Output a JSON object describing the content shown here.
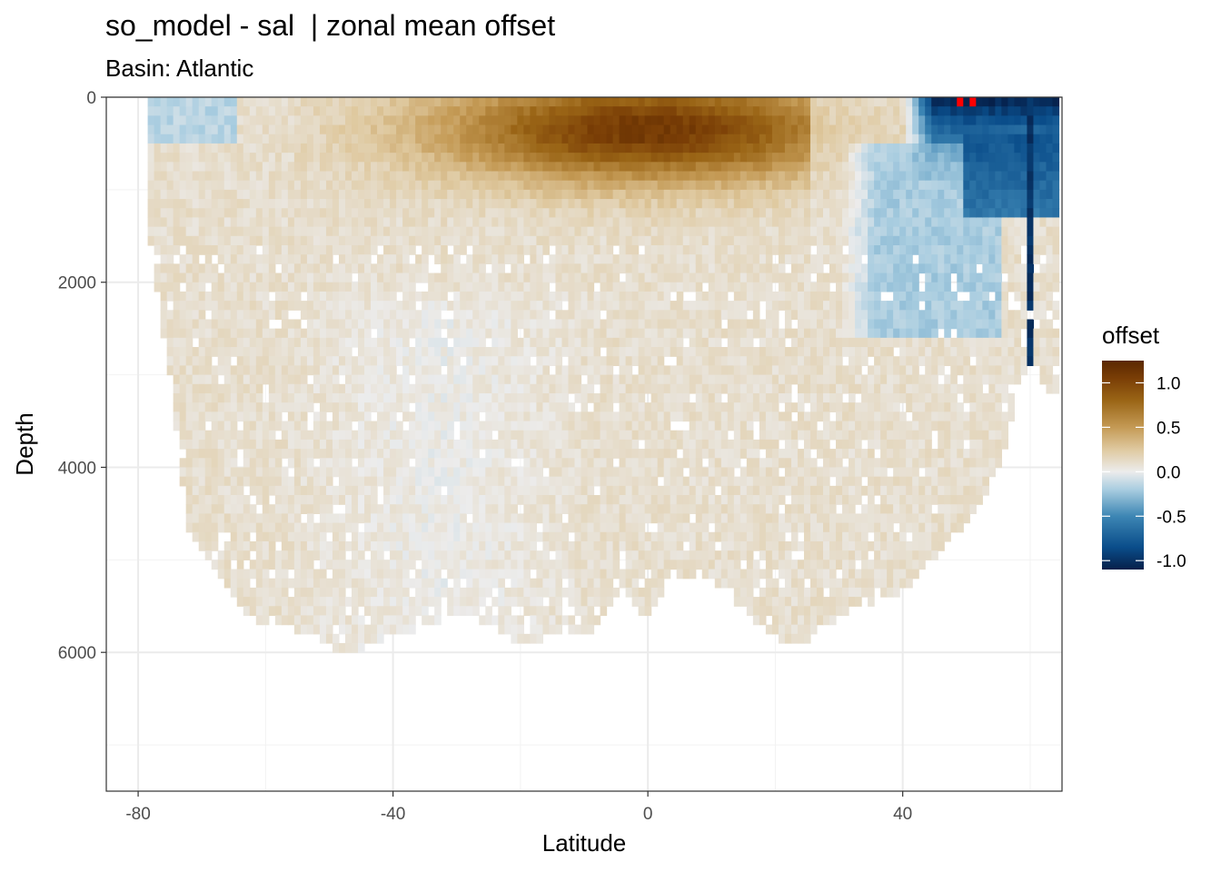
{
  "title": "so_model - sal  | zonal mean offset",
  "subtitle": "Basin: Atlantic",
  "chart_data": {
    "type": "heatmap",
    "title": "so_model - sal  | zonal mean offset",
    "subtitle": "Basin: Atlantic",
    "xlabel": "Latitude",
    "ylabel": "Depth",
    "xlim": [
      -85,
      65
    ],
    "ylim": [
      7500,
      0
    ],
    "y_reversed": true,
    "x_ticks": [
      -80,
      -40,
      0,
      40
    ],
    "x_tick_labels": [
      "-80",
      "-40",
      "0",
      "40"
    ],
    "y_ticks": [
      0,
      2000,
      4000,
      6000
    ],
    "y_tick_labels": [
      "0",
      "2000",
      "4000",
      "6000"
    ],
    "grid": true,
    "cell_size": {
      "lat": 1,
      "depth": 100
    },
    "legend": {
      "title": "offset",
      "position": "right",
      "range": [
        -1.1,
        1.25
      ],
      "ticks": [
        1.0,
        0.5,
        0.0,
        -0.5,
        -1.0
      ],
      "tick_labels": [
        "1.0",
        "0.5",
        "0.0",
        "-0.5",
        "-1.0"
      ],
      "colorscale": [
        {
          "value": -1.1,
          "color": "#06204a"
        },
        {
          "value": -0.85,
          "color": "#0a4d8a"
        },
        {
          "value": -0.5,
          "color": "#3d86b4"
        },
        {
          "value": -0.2,
          "color": "#a9cde0"
        },
        {
          "value": 0.0,
          "color": "#ececec"
        },
        {
          "value": 0.25,
          "color": "#dfc9a0"
        },
        {
          "value": 0.5,
          "color": "#c49a55"
        },
        {
          "value": 0.8,
          "color": "#9a6516"
        },
        {
          "value": 1.05,
          "color": "#7a3e06"
        },
        {
          "value": 1.25,
          "color": "#5a2800"
        }
      ],
      "out_of_range_color": "#ff0000"
    },
    "bottom_boundary": [
      {
        "lat": -78,
        "depth": 1600
      },
      {
        "lat": -75,
        "depth": 3000
      },
      {
        "lat": -72,
        "depth": 4700
      },
      {
        "lat": -68,
        "depth": 5100
      },
      {
        "lat": -64,
        "depth": 5500
      },
      {
        "lat": -60,
        "depth": 5700
      },
      {
        "lat": -56,
        "depth": 5700
      },
      {
        "lat": -52,
        "depth": 5800
      },
      {
        "lat": -48,
        "depth": 6000
      },
      {
        "lat": -44,
        "depth": 5900
      },
      {
        "lat": -40,
        "depth": 5800
      },
      {
        "lat": -36,
        "depth": 5700
      },
      {
        "lat": -32,
        "depth": 5600
      },
      {
        "lat": -28,
        "depth": 5600
      },
      {
        "lat": -24,
        "depth": 5700
      },
      {
        "lat": -20,
        "depth": 5900
      },
      {
        "lat": -16,
        "depth": 5800
      },
      {
        "lat": -12,
        "depth": 5800
      },
      {
        "lat": -8,
        "depth": 5700
      },
      {
        "lat": -4,
        "depth": 5300
      },
      {
        "lat": 0,
        "depth": 5600
      },
      {
        "lat": 4,
        "depth": 5200
      },
      {
        "lat": 8,
        "depth": 5100
      },
      {
        "lat": 12,
        "depth": 5300
      },
      {
        "lat": 16,
        "depth": 5600
      },
      {
        "lat": 20,
        "depth": 5800
      },
      {
        "lat": 24,
        "depth": 5900
      },
      {
        "lat": 28,
        "depth": 5700
      },
      {
        "lat": 32,
        "depth": 5500
      },
      {
        "lat": 36,
        "depth": 5400
      },
      {
        "lat": 40,
        "depth": 5300
      },
      {
        "lat": 44,
        "depth": 5000
      },
      {
        "lat": 48,
        "depth": 4700
      },
      {
        "lat": 52,
        "depth": 4400
      },
      {
        "lat": 56,
        "depth": 3800
      },
      {
        "lat": 58,
        "depth": 3100
      },
      {
        "lat": 60,
        "depth": 2900
      },
      {
        "lat": 62,
        "depth": 3100
      },
      {
        "lat": 64,
        "depth": 3200
      }
    ],
    "features": [
      {
        "name": "upper-ocean-salty-core",
        "lat_range": [
          -55,
          25
        ],
        "depth_range": [
          0,
          1600
        ],
        "peak_offset": 1.1,
        "peak_at": {
          "lat": 0,
          "depth": 300
        }
      },
      {
        "name": "deep-near-zero-band",
        "lat_range": [
          -50,
          -15
        ],
        "depth_range": [
          1800,
          4500
        ],
        "offset": 0.0
      },
      {
        "name": "deep-interior",
        "lat_range": [
          -75,
          55
        ],
        "depth_range": [
          1500,
          6000
        ],
        "offset": 0.1
      },
      {
        "name": "north-atlantic-fresh",
        "lat_range": [
          42,
          65
        ],
        "depth_range": [
          0,
          800
        ],
        "offset": -1.05
      },
      {
        "name": "north-atlantic-intermediate-fresh",
        "lat_range": [
          30,
          45
        ],
        "depth_range": [
          500,
          2500
        ],
        "offset": -0.3
      },
      {
        "name": "southern-surface-fresh",
        "lat_range": [
          -75,
          -65
        ],
        "depth_range": [
          0,
          400
        ],
        "offset": -0.15
      },
      {
        "name": "fresh-column-60N",
        "lat": 60,
        "depth_range": [
          0,
          2900
        ],
        "offset": -1.0
      },
      {
        "name": "out-of-range-surface",
        "points": [
          {
            "lat": 49,
            "depth": 50
          },
          {
            "lat": 51,
            "depth": 50
          }
        ],
        "offset": 1.6
      }
    ]
  }
}
